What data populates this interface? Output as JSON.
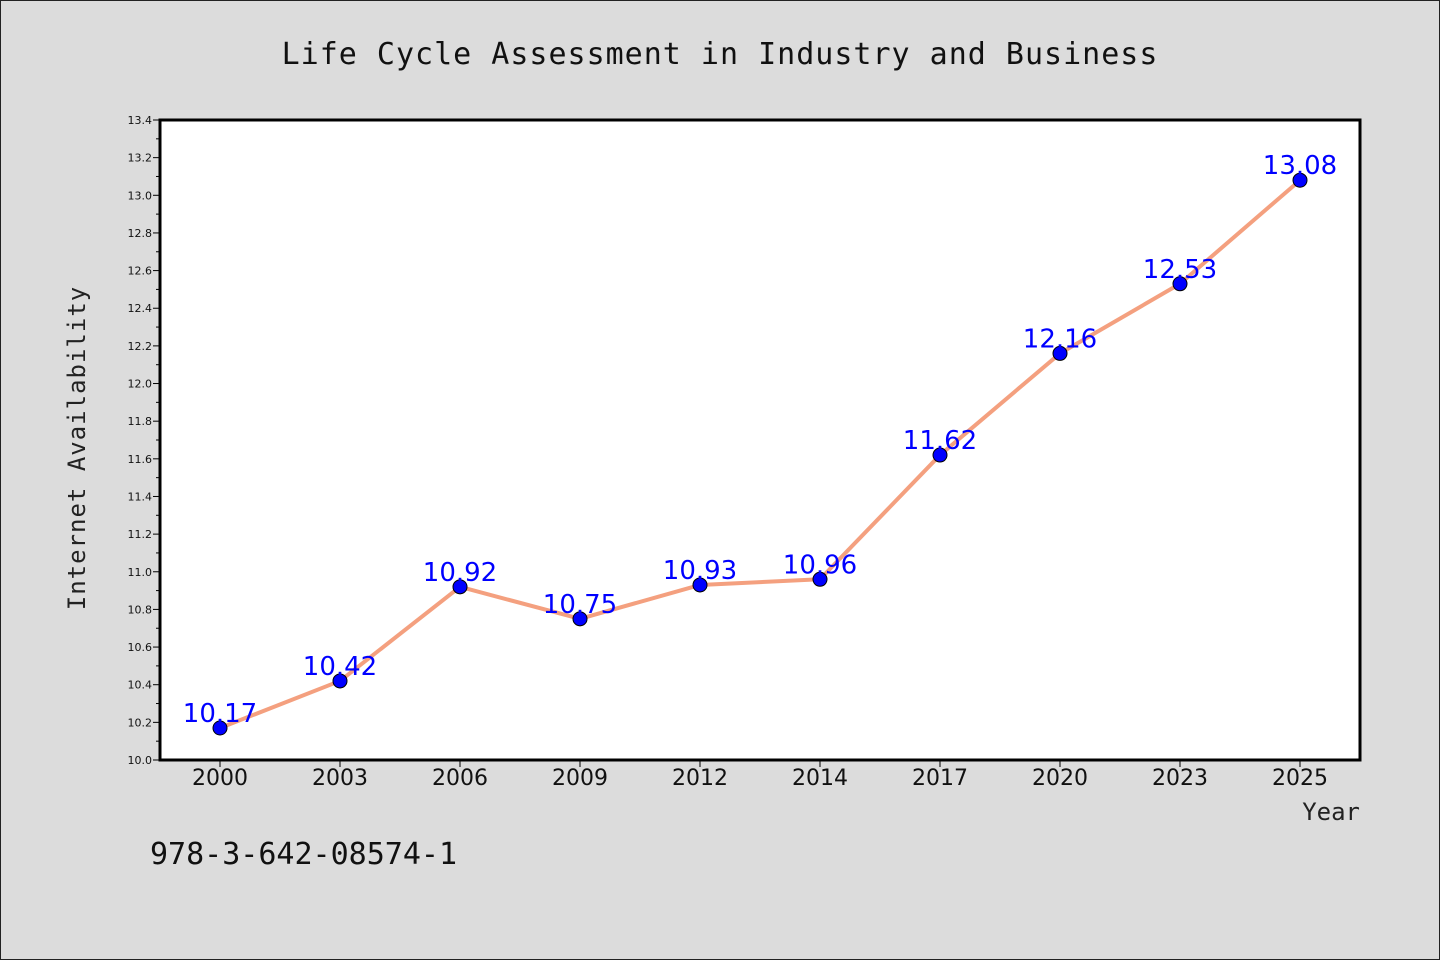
{
  "chart_data": {
    "type": "line",
    "title": "Life Cycle Assessment in Industry and Business",
    "xlabel": "Year",
    "ylabel": "Internet Availability",
    "categories": [
      "2000",
      "2003",
      "2006",
      "2009",
      "2012",
      "2014",
      "2017",
      "2020",
      "2023",
      "2025"
    ],
    "series": [
      {
        "values": [
          10.17,
          10.42,
          10.92,
          10.75,
          10.93,
          10.96,
          11.62,
          12.16,
          12.53,
          13.08
        ],
        "data_labels": [
          "10.17",
          "10.42",
          "10.92",
          "10.75",
          "10.93",
          "10.96",
          "11.62",
          "12.16",
          "12.53",
          "13.08"
        ]
      }
    ],
    "ylim": [
      10.0,
      13.4
    ],
    "yticks": [
      "10.0",
      "10.2",
      "10.4",
      "10.6",
      "10.8",
      "11.0",
      "11.2",
      "11.4",
      "11.6",
      "11.8",
      "12.0",
      "12.2",
      "12.4",
      "12.6",
      "12.8",
      "13.0",
      "13.2",
      "13.4"
    ],
    "grid": false,
    "legend": "none",
    "line_color": "#f4a07f",
    "marker_color": "#0000ff",
    "label_color": "#0000ff",
    "plot_background": "#ffffff",
    "figure_background": "#dcdcdc"
  },
  "footnote": "978-3-642-08574-1"
}
